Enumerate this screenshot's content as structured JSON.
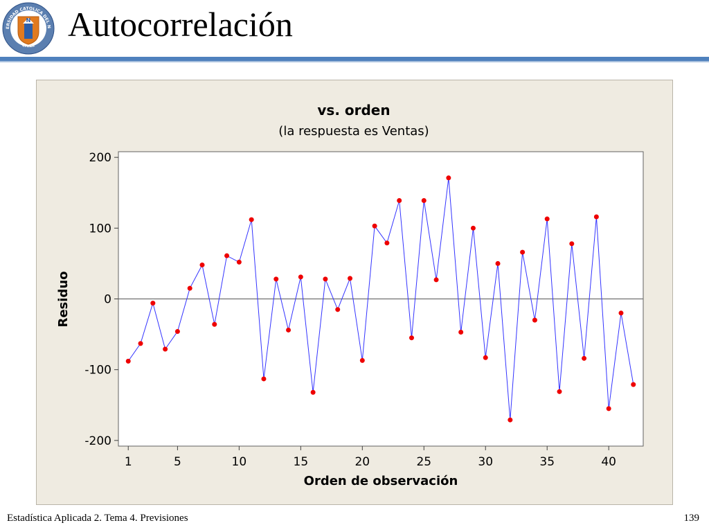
{
  "slide": {
    "title": "Autocorrelación",
    "footer_left": "Estadística Aplicada 2. Tema 4. Previsiones",
    "page_number": "139",
    "logo": {
      "icon": "university-seal-icon",
      "ring_text": "UNIVERSIDAD CATOLICA DEL NORTE",
      "bottom_text": "CHILE",
      "letter": "N"
    },
    "colors": {
      "accent_rule": "#4f81bd",
      "chart_panel": "#efebe1"
    }
  },
  "chart_data": {
    "type": "line",
    "title": "vs. orden",
    "subtitle": "(la respuesta es Ventas)",
    "xlabel": "Orden de observación",
    "ylabel": "Residuo",
    "xlim": [
      0.2,
      42.8
    ],
    "ylim": [
      -208,
      208
    ],
    "x_ticks": [
      1,
      5,
      10,
      15,
      20,
      25,
      30,
      35,
      40
    ],
    "y_ticks": [
      -200,
      -100,
      0,
      100,
      200
    ],
    "y_tick_labels": [
      "-200",
      "-100",
      "0",
      "100",
      "200"
    ],
    "reference_line": 0,
    "line_color": "#3333ff",
    "marker_color": "#ee0000",
    "x": [
      1,
      2,
      3,
      4,
      5,
      6,
      7,
      8,
      9,
      10,
      11,
      12,
      13,
      14,
      15,
      16,
      17,
      18,
      19,
      20,
      21,
      22,
      23,
      24,
      25,
      26,
      27,
      28,
      29,
      30,
      31,
      32,
      33,
      34,
      35,
      36,
      37,
      38,
      39,
      40,
      41,
      42
    ],
    "values": [
      -88,
      -63,
      -6,
      -71,
      -46,
      15,
      48,
      -36,
      61,
      52,
      112,
      -113,
      28,
      -44,
      31,
      -132,
      28,
      -15,
      29,
      -87,
      103,
      79,
      139,
      -55,
      139,
      27,
      171,
      -47,
      100,
      -83,
      50,
      -171,
      66,
      -30,
      113,
      -131,
      78,
      -84,
      116,
      -155,
      -20,
      -121
    ]
  }
}
